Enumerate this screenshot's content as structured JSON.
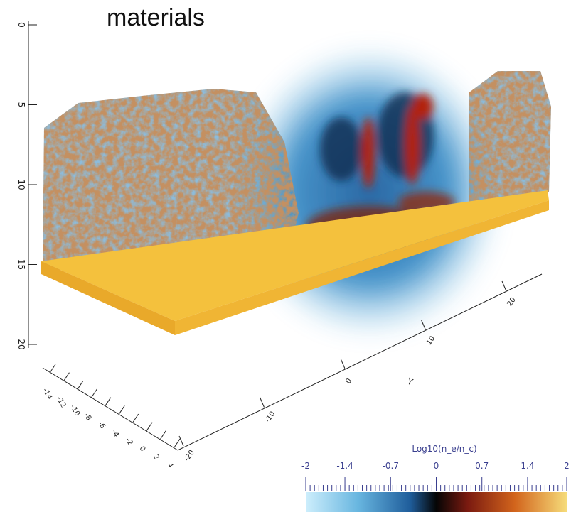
{
  "title": "materials",
  "axes": {
    "z": {
      "ticks": [
        0,
        5,
        10,
        15,
        20
      ]
    },
    "y": {
      "label": "Y",
      "ticks": [
        -20,
        -10,
        0,
        10,
        20
      ]
    },
    "x": {
      "ticks": [
        -14,
        -12,
        -10,
        -8,
        -6,
        -4,
        -2,
        0,
        2,
        4
      ]
    }
  },
  "colorbar": {
    "title": "Log10(n_e/n_c)",
    "range": [
      -2,
      2
    ],
    "ticks": [
      -2,
      -1.4,
      -0.7,
      0,
      0.7,
      1.4,
      2
    ]
  }
}
